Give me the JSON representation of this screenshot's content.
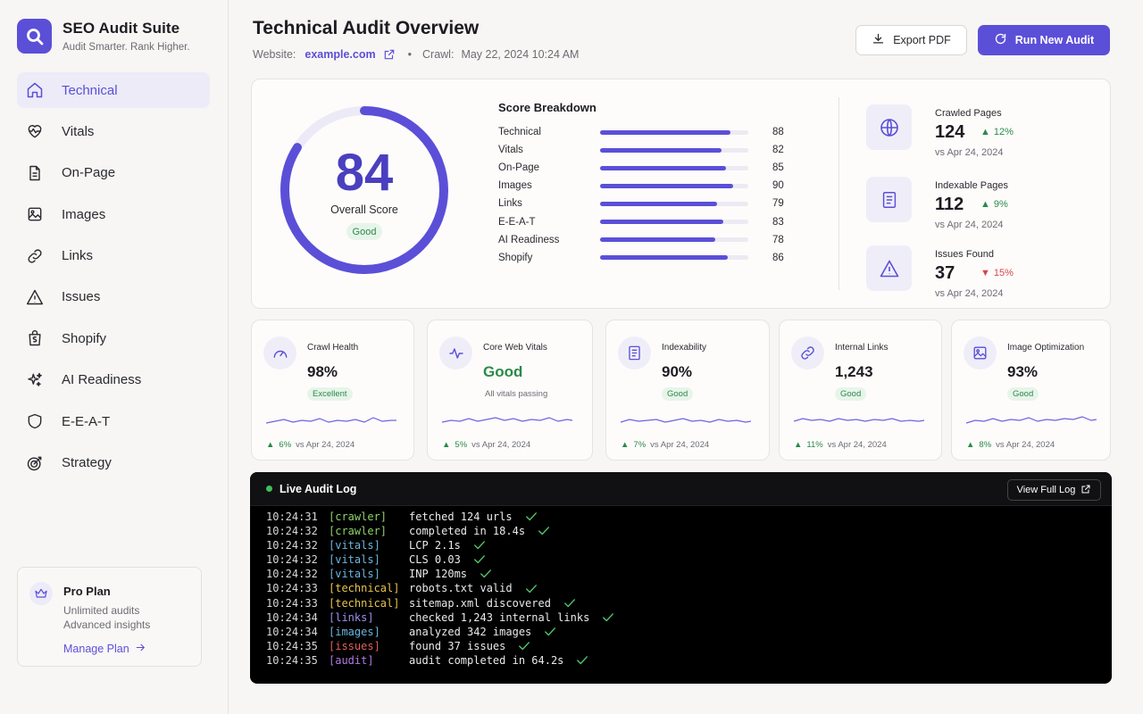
{
  "brand": {
    "title": "SEO Audit Suite",
    "subtitle": "Audit Smarter. Rank Higher."
  },
  "nav": [
    {
      "label": "Technical",
      "icon": "home-icon",
      "active": true
    },
    {
      "label": "Vitals",
      "icon": "heart-pulse-icon"
    },
    {
      "label": "On-Page",
      "icon": "document-icon"
    },
    {
      "label": "Images",
      "icon": "image-icon"
    },
    {
      "label": "Links",
      "icon": "link-icon"
    },
    {
      "label": "Issues",
      "icon": "warning-icon"
    },
    {
      "label": "Shopify",
      "icon": "shopify-bag-icon"
    },
    {
      "label": "AI Readiness",
      "icon": "sparkles-icon"
    },
    {
      "label": "E-E-A-T",
      "icon": "shield-icon"
    },
    {
      "label": "Strategy",
      "icon": "target-icon"
    }
  ],
  "plan": {
    "title": "Pro Plan",
    "line1": "Unlimited audits",
    "line2": "Advanced insights",
    "link": "Manage Plan"
  },
  "header": {
    "title": "Technical Audit Overview",
    "website_label": "Website:",
    "website": "example.com",
    "crawl_label": "Crawl:",
    "crawl_date": "May 22, 2024 10:24 AM",
    "export_label": "Export PDF",
    "run_label": "Run New Audit"
  },
  "score": {
    "value": "84",
    "fraction": 0.84,
    "label": "Overall Score",
    "badge": "Good"
  },
  "breakdown": {
    "title": "Score Breakdown",
    "rows": [
      {
        "label": "Technical",
        "value": "88"
      },
      {
        "label": "Vitals",
        "value": "82"
      },
      {
        "label": "On-Page",
        "value": "85"
      },
      {
        "label": "Images",
        "value": "90"
      },
      {
        "label": "Links",
        "value": "79"
      },
      {
        "label": "E-E-A-T",
        "value": "83"
      },
      {
        "label": "AI Readiness",
        "value": "78"
      },
      {
        "label": "Shopify",
        "value": "86"
      }
    ]
  },
  "stats": [
    {
      "label": "Crawled Pages",
      "value": "124",
      "delta": "12%",
      "dir": "up",
      "vs": "vs Apr 24, 2024",
      "icon": "globe-icon"
    },
    {
      "label": "Indexable Pages",
      "value": "112",
      "delta": "9%",
      "dir": "up",
      "vs": "vs Apr 24, 2024",
      "icon": "document-icon"
    },
    {
      "label": "Issues Found",
      "value": "37",
      "delta": "15%",
      "dir": "down",
      "vs": "vs Apr 24, 2024",
      "icon": "warning-icon"
    }
  ],
  "metrics": [
    {
      "label": "Crawl Health",
      "value": "98%",
      "badge": "Excellent",
      "delta": "6%",
      "vs": "vs Apr 24, 2024",
      "icon": "gauge-icon"
    },
    {
      "label": "Core Web Vitals",
      "value": "Good",
      "sub": "All vitals passing",
      "delta": "5%",
      "vs": "vs Apr 24, 2024",
      "icon": "pulse-icon"
    },
    {
      "label": "Indexability",
      "value": "90%",
      "badge": "Good",
      "delta": "7%",
      "vs": "vs Apr 24, 2024",
      "icon": "document-icon"
    },
    {
      "label": "Internal Links",
      "value": "1,243",
      "badge": "Good",
      "delta": "11%",
      "vs": "vs Apr 24, 2024",
      "icon": "link-icon"
    },
    {
      "label": "Image Optimization",
      "value": "93%",
      "badge": "Good",
      "delta": "8%",
      "vs": "vs Apr 24, 2024",
      "icon": "image-icon"
    }
  ],
  "log": {
    "title": "Live Audit Log",
    "button": "View Full Log",
    "lines": [
      {
        "time": "10:24:31",
        "tag": "[crawler]",
        "msg": "fetched 124 urls"
      },
      {
        "time": "10:24:32",
        "tag": "[crawler]",
        "msg": "completed in 18.4s"
      },
      {
        "time": "10:24:32",
        "tag": "[vitals]",
        "msg": "LCP 2.1s"
      },
      {
        "time": "10:24:32",
        "tag": "[vitals]",
        "msg": "CLS 0.03"
      },
      {
        "time": "10:24:32",
        "tag": "[vitals]",
        "msg": "INP 120ms"
      },
      {
        "time": "10:24:33",
        "tag": "[technical]",
        "msg": "robots.txt valid"
      },
      {
        "time": "10:24:33",
        "tag": "[technical]",
        "msg": "sitemap.xml discovered"
      },
      {
        "time": "10:24:34",
        "tag": "[links]",
        "msg": "checked 1,243 internal links"
      },
      {
        "time": "10:24:34",
        "tag": "[images]",
        "msg": "analyzed 342 images"
      },
      {
        "time": "10:24:35",
        "tag": "[issues]",
        "msg": "found 37 issues"
      },
      {
        "time": "10:24:35",
        "tag": "[audit]",
        "msg": "audit completed in 64.2s"
      }
    ]
  },
  "colors": {
    "accent": "#5b4fd8",
    "good": "#2a8a4a",
    "bad": "#d94545"
  }
}
